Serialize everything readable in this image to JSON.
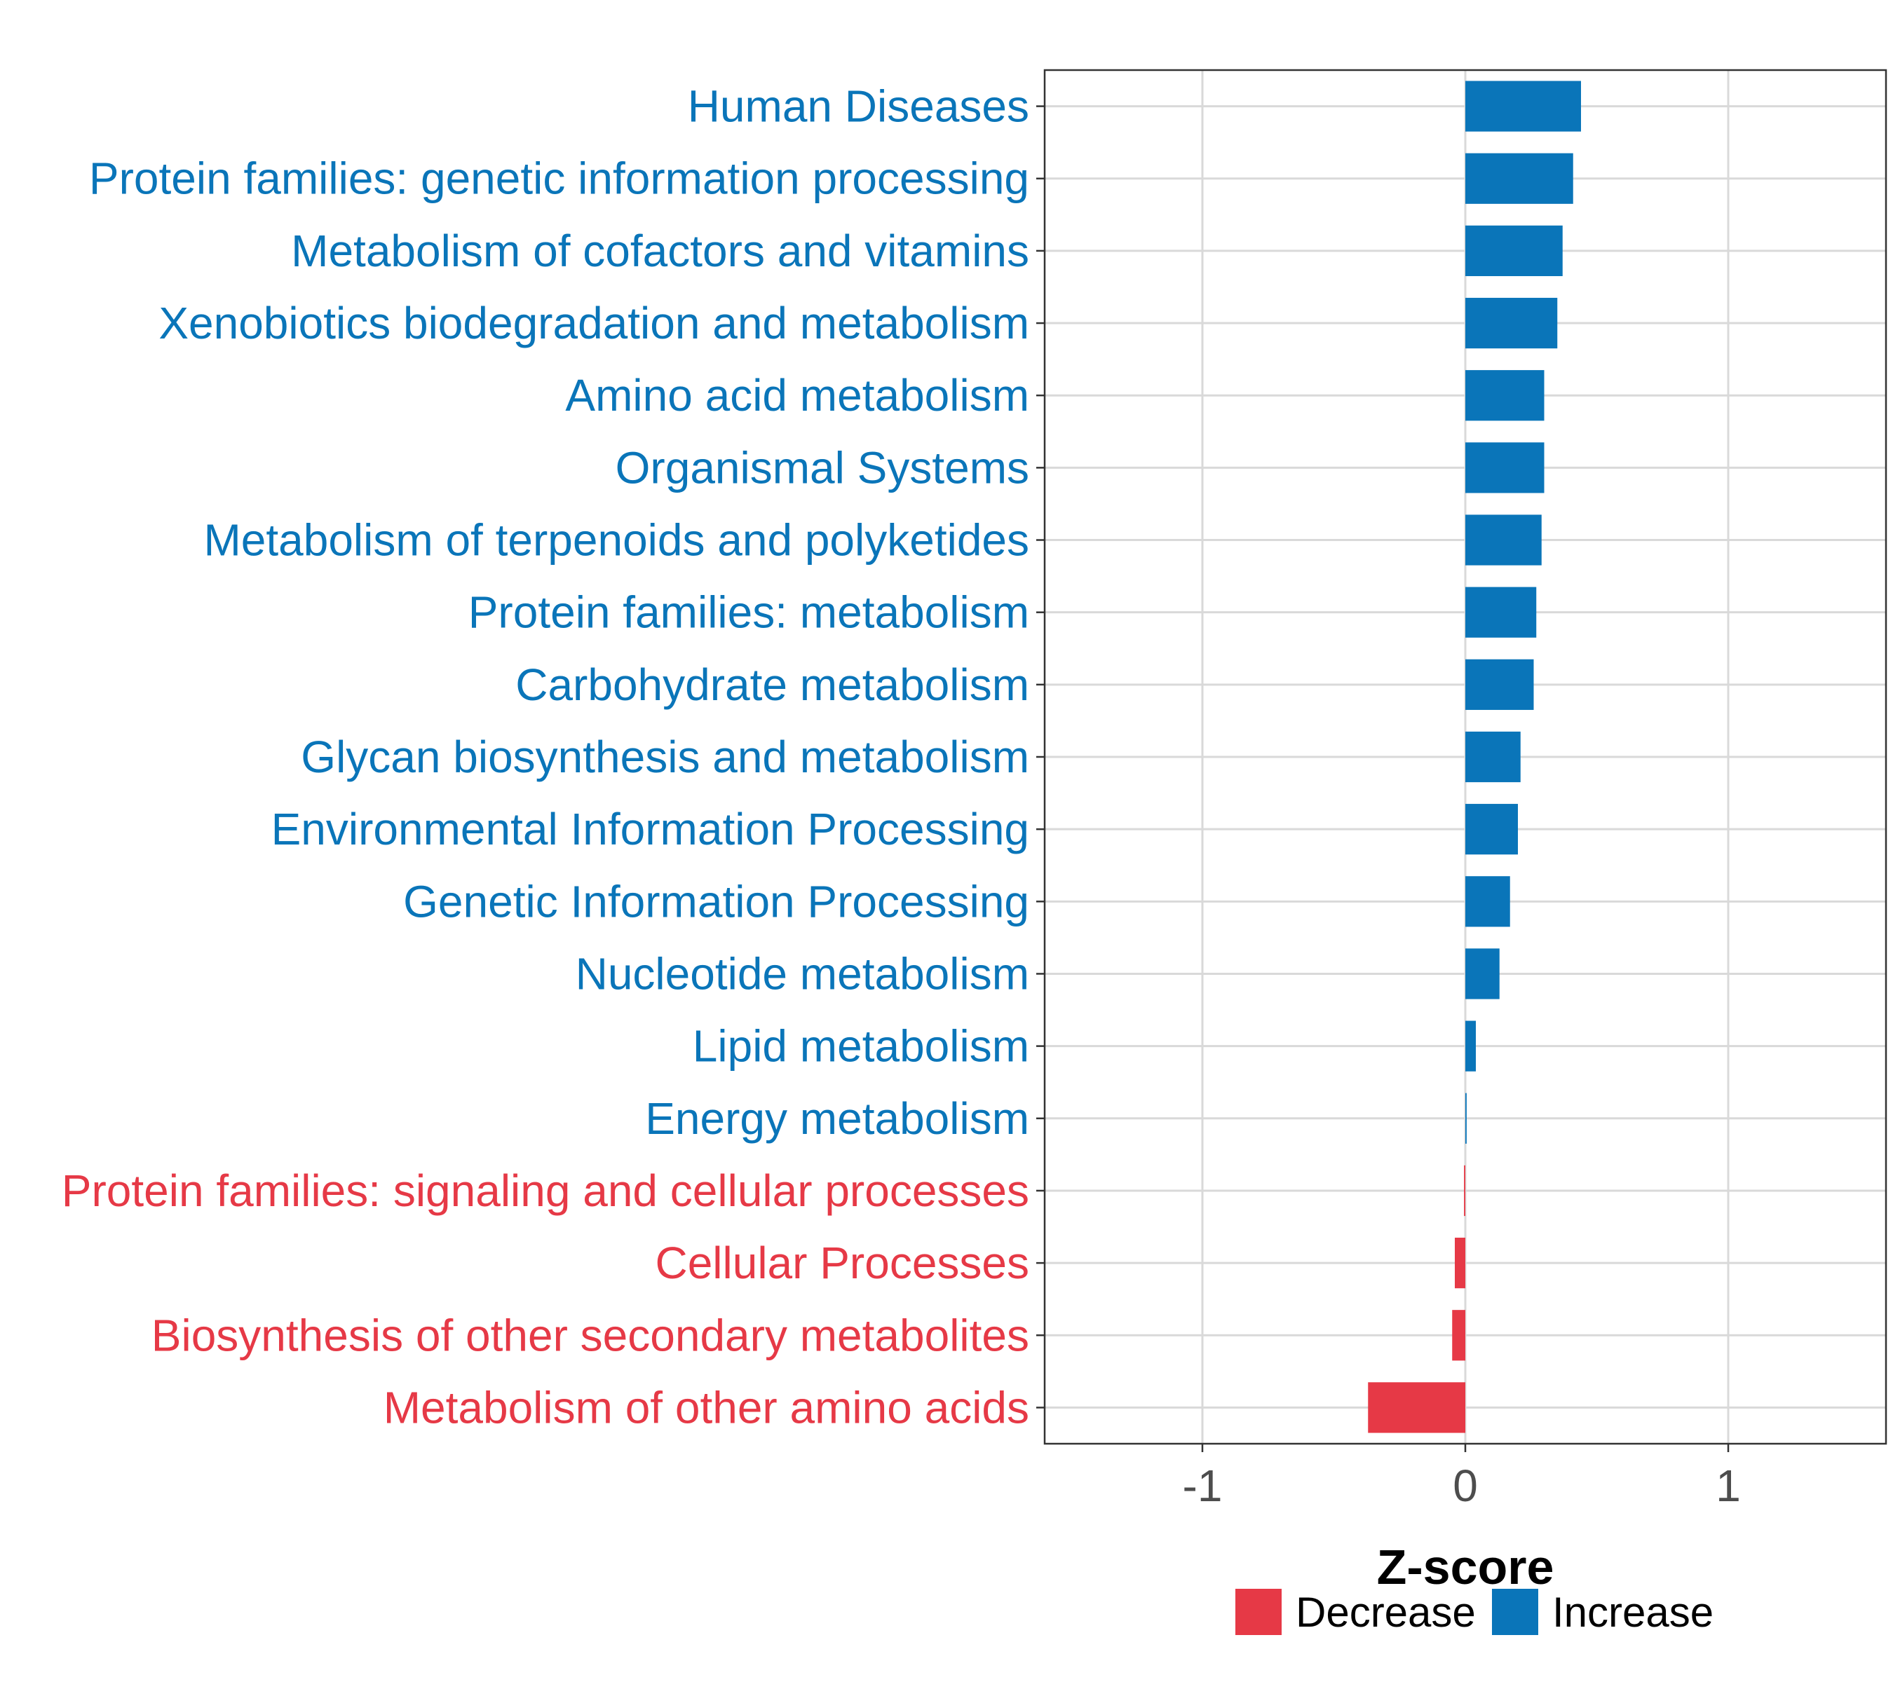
{
  "chart_data": {
    "type": "bar",
    "orientation": "horizontal",
    "categories": [
      "Human Diseases",
      "Protein families: genetic information processing",
      "Metabolism of cofactors and vitamins",
      "Xenobiotics biodegradation and metabolism",
      "Amino acid metabolism",
      "Organismal Systems",
      "Metabolism of terpenoids and polyketides",
      "Protein families: metabolism",
      "Carbohydrate metabolism",
      "Glycan biosynthesis and metabolism",
      "Environmental Information Processing",
      "Genetic Information Processing",
      "Nucleotide metabolism",
      "Lipid metabolism",
      "Energy metabolism",
      "Protein families: signaling and cellular processes",
      "Cellular Processes",
      "Biosynthesis of other secondary metabolites",
      "Metabolism of other amino acids"
    ],
    "values": [
      0.44,
      0.41,
      0.37,
      0.35,
      0.3,
      0.3,
      0.29,
      0.27,
      0.26,
      0.21,
      0.2,
      0.17,
      0.13,
      0.04,
      0.005,
      -0.005,
      -0.04,
      -0.05,
      -0.37
    ],
    "groups": [
      "Increase",
      "Increase",
      "Increase",
      "Increase",
      "Increase",
      "Increase",
      "Increase",
      "Increase",
      "Increase",
      "Increase",
      "Increase",
      "Increase",
      "Increase",
      "Increase",
      "Increase",
      "Decrease",
      "Decrease",
      "Decrease",
      "Decrease"
    ],
    "xlabel": "Z-score",
    "ylabel": "",
    "xlim": [
      -1.6,
      1.6
    ],
    "xticks": [
      -1,
      0,
      1
    ],
    "xtick_labels": [
      "-1",
      "0",
      "1"
    ],
    "grid": true,
    "legend": {
      "position": "bottom",
      "entries": [
        {
          "label": "Decrease",
          "color": "#e63946"
        },
        {
          "label": "Increase",
          "color": "#0a75b9"
        }
      ]
    },
    "colors": {
      "Decrease": "#e63946",
      "Increase": "#0a75b9"
    }
  }
}
